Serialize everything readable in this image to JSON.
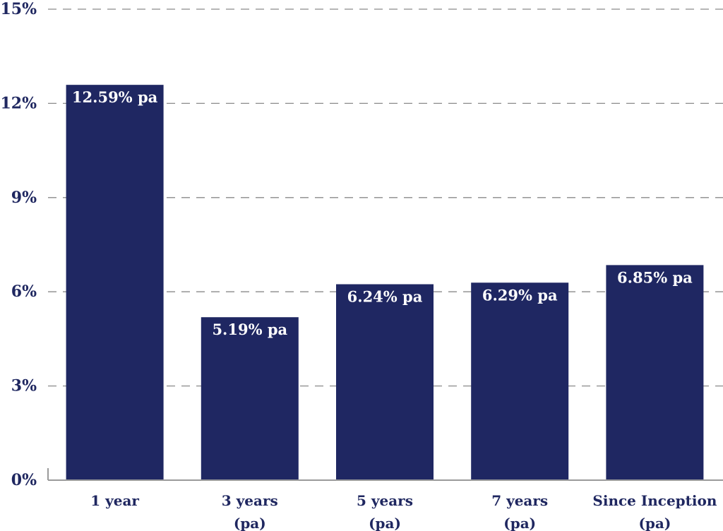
{
  "colors": {
    "bar": "#1f2762",
    "text": "#1f2760",
    "grid": "#8a8a8a"
  },
  "chart_data": {
    "type": "bar",
    "title": "",
    "xlabel": "",
    "ylabel": "",
    "ylim": [
      0,
      15
    ],
    "y_ticks": [
      0,
      3,
      6,
      9,
      12,
      15
    ],
    "y_tick_labels": [
      "0%",
      "3%",
      "6%",
      "9%",
      "12%",
      "15%"
    ],
    "grid": true,
    "categories": [
      "1 year",
      "3 years\n(pa)",
      "5 years\n(pa)",
      "7 years\n(pa)",
      "Since Inception\n(pa)"
    ],
    "values": [
      12.59,
      5.19,
      6.24,
      6.29,
      6.85
    ],
    "data_labels": [
      "12.59% pa",
      "5.19% pa",
      "6.24% pa",
      "6.29% pa",
      "6.85% pa"
    ]
  }
}
